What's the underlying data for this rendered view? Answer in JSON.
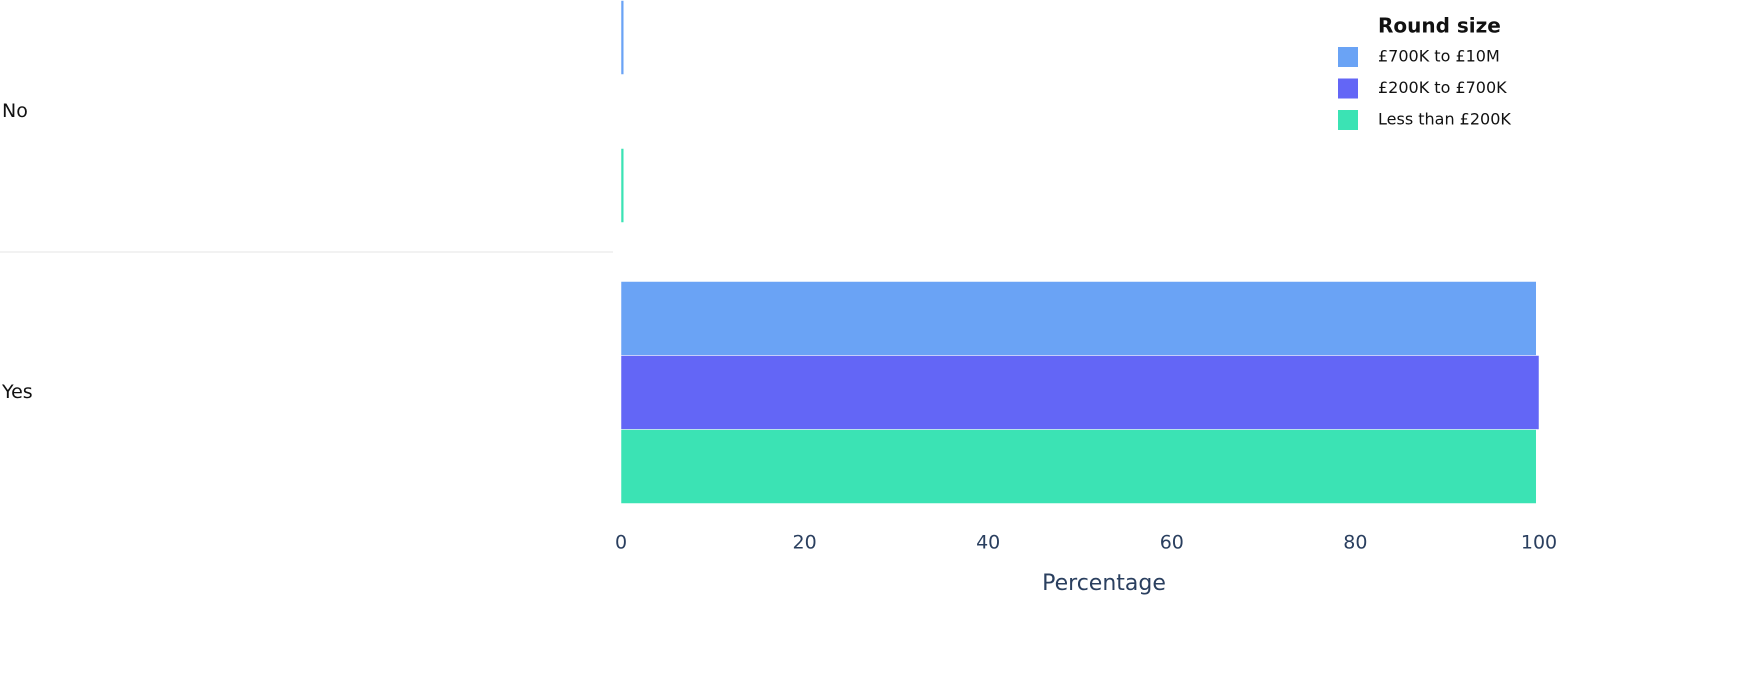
{
  "chart_data": {
    "type": "bar",
    "orientation": "horizontal",
    "categories": [
      "No",
      "Yes"
    ],
    "series": [
      {
        "name": "£700K to £10M",
        "color": "#6aa3f5",
        "values": [
          0.3,
          99.7
        ]
      },
      {
        "name": "£200K to £700K",
        "color": "#6366f6",
        "values": [
          0,
          100
        ]
      },
      {
        "name": "Less than £200K",
        "color": "#3be3b4",
        "values": [
          0.3,
          99.7
        ]
      }
    ],
    "xlim": [
      0,
      100
    ],
    "xticks": [
      0,
      20,
      40,
      60,
      80,
      100
    ],
    "xlabel": "Percentage",
    "legend_title": "Round size",
    "legend": "top-right",
    "grid": false
  }
}
